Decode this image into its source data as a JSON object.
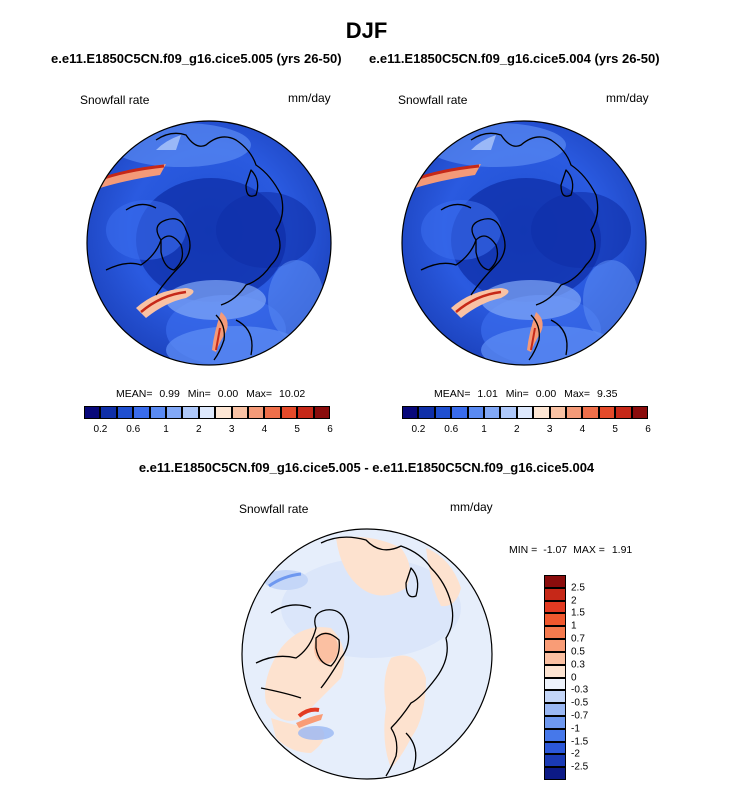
{
  "figure": {
    "title": "DJF",
    "left_case": "e.e11.E1850C5CN.f09_g16.cice5.005 (yrs 26-50)",
    "right_case": "e.e11.E1850C5CN.f09_g16.cice5.004 (yrs 26-50)",
    "diff_title": "e.e11.E1850C5CN.f09_g16.cice5.005 - e.e11.E1850C5CN.f09_g16.cice5.004"
  },
  "panels": [
    {
      "variable": "Snowfall rate",
      "units": "mm/day",
      "stats": {
        "mean_label": "MEAN=",
        "mean": "0.99",
        "min_label": "Min=",
        "min": "0.00",
        "max_label": "Max=",
        "max": "10.02"
      }
    },
    {
      "variable": "Snowfall rate",
      "units": "mm/day",
      "stats": {
        "mean_label": "MEAN=",
        "mean": "1.01",
        "min_label": "Min=",
        "min": "0.00",
        "max_label": "Max=",
        "max": "9.35"
      }
    },
    {
      "variable": "Snowfall rate",
      "units": "mm/day",
      "stats": {
        "min_label": "MIN =",
        "min": "-1.07",
        "max_label": "MAX =",
        "max": "1.91"
      }
    }
  ],
  "colorbar_abs": {
    "colors": [
      "#08087a",
      "#0f2fa8",
      "#1f4fd0",
      "#3a6cec",
      "#5a8af2",
      "#82a8f6",
      "#aec8fa",
      "#dde8fc",
      "#fde6d4",
      "#f9c2a4",
      "#f49a78",
      "#ef6f4a",
      "#e44a2a",
      "#c62818",
      "#8a0c0c"
    ],
    "tick_labels": [
      "0.2",
      "0.6",
      "1",
      "2",
      "3",
      "4",
      "5",
      "6"
    ],
    "tick_after_box": [
      1,
      3,
      5,
      7,
      9,
      11,
      13,
      15
    ]
  },
  "colorbar_diff": {
    "colors": [
      "#8a0c0c",
      "#c62818",
      "#e23a22",
      "#f0582e",
      "#f57a4e",
      "#f99c76",
      "#fbc0a2",
      "#fde4d2",
      "#eef3fc",
      "#c4d6f8",
      "#9ab8f4",
      "#6e98f0",
      "#4678ea",
      "#2c58d8",
      "#1a3ab4",
      "#0c1a86"
    ],
    "tick_labels": [
      "2.5",
      "2",
      "1.5",
      "1",
      "0.7",
      "0.5",
      "0.3",
      "0",
      "-0.3",
      "-0.5",
      "-0.7",
      "-1",
      "-1.5",
      "-2",
      "-2.5"
    ]
  }
}
